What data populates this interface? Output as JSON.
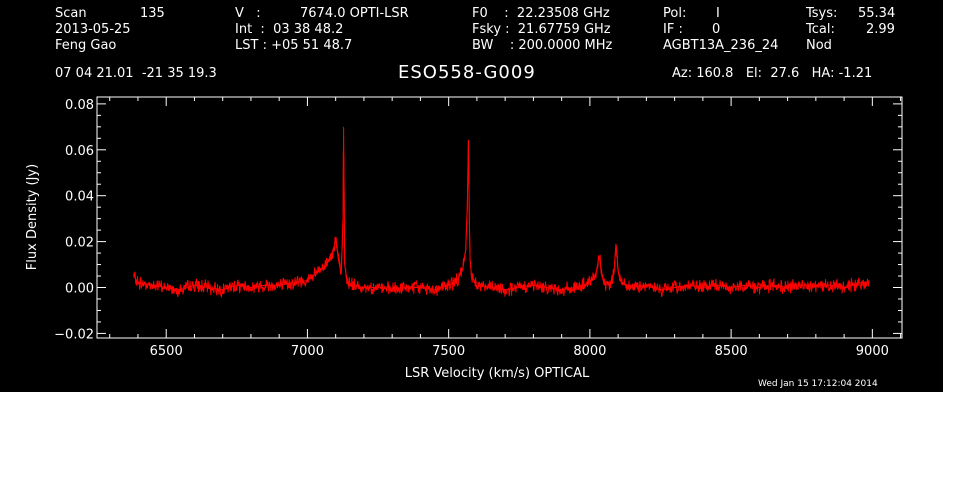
{
  "header": {
    "scan_label": "Scan",
    "scan_value": "135",
    "date": "2013-05-25",
    "observer": "Feng Gao",
    "v_label": "V   :",
    "v_value": "7674.0 OPTI-LSR",
    "int_line": "Int  :  03 38 48.2",
    "lst_line": "LST : +05 51 48.7",
    "f0_line": "F0    :  22.23508 GHz",
    "fsky_line": "Fsky :  21.67759 GHz",
    "bw_line": "BW    : 200.0000 MHz",
    "pol_label": "Pol:",
    "pol_value": "I",
    "if_label": "IF :",
    "if_value": "0",
    "project": "AGBT13A_236_24",
    "tsys_label": "Tsys:",
    "tsys_value": "55.34",
    "tcal_label": "Tcal:",
    "tcal_value": "2.99",
    "proc": "Nod",
    "coords": "07 04 21.01  -21 35 19.3",
    "source": "ESO558-G009",
    "az_el_ha": "Az: 160.8   El:  27.6   HA: -1.21"
  },
  "footer": {
    "timestamp": "Wed Jan 15 17:12:04 2014"
  },
  "colors": {
    "background": "#000000",
    "foreground": "#ffffff",
    "trace": "#ff0000"
  },
  "chart_data": {
    "type": "line",
    "xlabel": "LSR Velocity (km/s) OPTICAL",
    "ylabel": "Flux Density (Jy)",
    "xlim": [
      6255,
      9105
    ],
    "ylim": [
      -0.022,
      0.083
    ],
    "x_ticks": [
      6500,
      7000,
      7500,
      8000,
      8500,
      9000
    ],
    "x_tick_labels": [
      "6500",
      "7000",
      "7500",
      "8000",
      "8500",
      "9000"
    ],
    "y_ticks": [
      -0.02,
      0.0,
      0.02,
      0.04,
      0.06,
      0.08
    ],
    "y_tick_labels": [
      "−0.02",
      "0.00",
      "0.02",
      "0.04",
      "0.06",
      "0.08"
    ],
    "grid": false,
    "series": [
      {
        "x": [
          6385,
          6400,
          6450,
          6500,
          6550,
          6600,
          6650,
          6700,
          6750,
          6800,
          6850,
          6900,
          6950,
          7000,
          7030,
          7060,
          7080,
          7095,
          7100,
          7110,
          7120,
          7126,
          7128,
          7132,
          7140,
          7160,
          7200,
          7250,
          7300,
          7350,
          7400,
          7450,
          7500,
          7530,
          7550,
          7560,
          7566,
          7570,
          7573,
          7576,
          7580,
          7590,
          7610,
          7650,
          7700,
          7750,
          7800,
          7850,
          7900,
          7950,
          8000,
          8020,
          8030,
          8035,
          8040,
          8050,
          8070,
          8085,
          8092,
          8096,
          8100,
          8105,
          8115,
          8150,
          8200,
          8250,
          8300,
          8350,
          8400,
          8450,
          8500,
          8550,
          8600,
          8650,
          8700,
          8750,
          8800,
          8850,
          8900,
          8950,
          8990
        ],
        "y": [
          0.005,
          0.002,
          0.001,
          0.0,
          -0.001,
          0.001,
          0.0,
          -0.001,
          0.001,
          0.0,
          0.001,
          0.001,
          0.002,
          0.003,
          0.006,
          0.009,
          0.013,
          0.018,
          0.021,
          0.012,
          0.006,
          0.03,
          0.07,
          0.01,
          0.003,
          0.001,
          0.0,
          0.0,
          -0.001,
          0.0,
          0.0,
          -0.001,
          0.001,
          0.003,
          0.008,
          0.016,
          0.035,
          0.064,
          0.03,
          0.012,
          0.006,
          0.003,
          0.001,
          0.0,
          -0.001,
          0.0,
          0.001,
          0.0,
          -0.001,
          0.0,
          0.002,
          0.005,
          0.012,
          0.013,
          0.006,
          0.002,
          0.001,
          0.006,
          0.019,
          0.015,
          0.008,
          0.004,
          0.002,
          0.0,
          0.001,
          -0.001,
          0.0,
          0.001,
          0.0,
          0.001,
          0.0,
          0.001,
          0.0,
          0.001,
          0.0,
          0.001,
          0.001,
          0.001,
          0.0,
          0.002,
          0.002
        ]
      }
    ]
  }
}
